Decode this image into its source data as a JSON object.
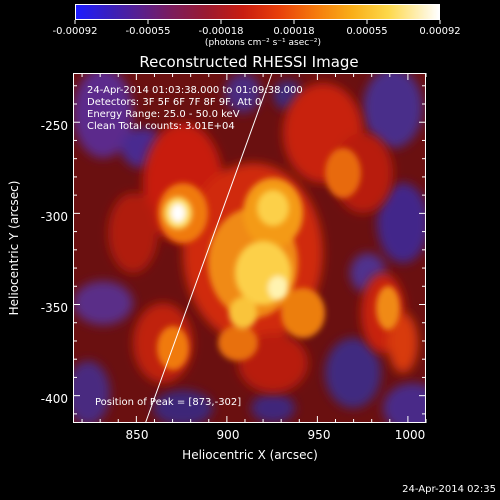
{
  "colorbar": {
    "tick_labels": [
      "-0.00092",
      "-0.00055",
      "-0.00018",
      "0.00018",
      "0.00055",
      "0.00092"
    ],
    "unit_label": "(photons cm⁻² s⁻¹ asec⁻²)"
  },
  "title": "Reconstructed RHESSI Image",
  "info": {
    "time_range": "24-Apr-2014 01:03:38.000 to 01:09:38.000",
    "detectors": "Detectors: 3F 5F 6F 7F 8F 9F, Att 0",
    "energy_range": "Energy Range: 25.0 - 50.0 keV",
    "clean_counts": "Clean    Total counts: 3.01E+04",
    "peak": "Position of Peak = [873,-302]"
  },
  "x_axis": {
    "title": "Heliocentric X (arcsec)",
    "tick_labels": [
      "850",
      "900",
      "950",
      "1000"
    ],
    "range": [
      815,
      1010
    ]
  },
  "y_axis": {
    "title": "Heliocentric Y (arcsec)",
    "tick_labels": [
      "-250",
      "-300",
      "-350",
      "-400"
    ],
    "range": [
      -415,
      -223
    ]
  },
  "image": {
    "peak_x": 873,
    "peak_y": -302,
    "limb_line": {
      "x_start": 855,
      "y_start": -415,
      "x_end": 925,
      "y_end": -223
    }
  },
  "timestamp": "24-Apr-2014 02:35"
}
